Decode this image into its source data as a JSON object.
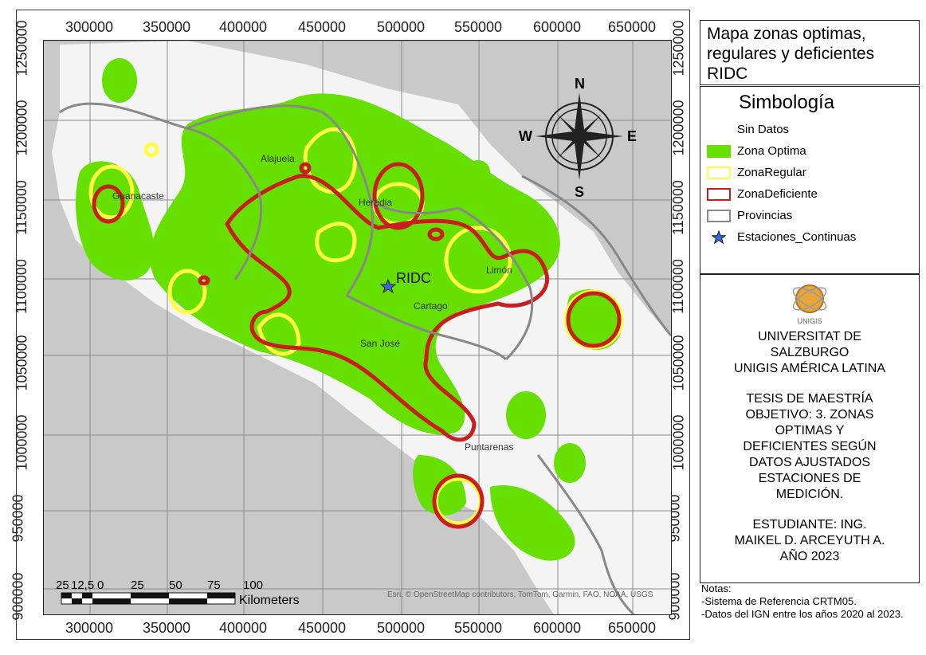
{
  "map": {
    "x_ticks": [
      "300000",
      "350000",
      "400000",
      "450000",
      "500000",
      "550000",
      "600000",
      "650000"
    ],
    "y_ticks": [
      "1250000",
      "1200000",
      "1150000",
      "1100000",
      "1050000",
      "1000000",
      "950000",
      "900000"
    ],
    "provinces": [
      "Guanacaste",
      "Alajuela",
      "Heredia",
      "Limón",
      "Cartago",
      "San José",
      "Puntarenas"
    ],
    "station_label": "RIDC",
    "attribution": "Esri, © OpenStreetMap contributors, TomTom, Garmin, FAO, NOAA, USGS",
    "scale_labels": [
      "25",
      "12,5",
      "0",
      "25",
      "50",
      "75",
      "100"
    ],
    "scale_unit": "Kilometers",
    "compass": {
      "n": "N",
      "s": "S",
      "e": "E",
      "w": "W"
    },
    "colors": {
      "optimal": "#66e000",
      "regular": "#ffff44",
      "deficient": "#c81e1e",
      "province": "#888888",
      "land": "#f4f4f4",
      "sea": "#c9c9c9"
    }
  },
  "title": "Mapa zonas optimas, regulares y deficientes RIDC",
  "legend": {
    "heading": "Simbología",
    "items": [
      "Sin Datos",
      "Zona Optima",
      "ZonaRegular",
      "ZonaDeficiente",
      "Provincias",
      "Estaciones_Continuas"
    ]
  },
  "info": {
    "logo_text": "UNIGIS",
    "university_line1": "UNIVERSITAT DE",
    "university_line2": "SALZBURGO",
    "university_line3": "UNIGIS AMÉRICA LATINA",
    "thesis_lines": [
      "TESIS DE MAESTRÍA",
      "OBJETIVO: 3. ZONAS",
      "OPTIMAS Y",
      "DEFICIENTES SEGÚN",
      "DATOS AJUSTADOS",
      "ESTACIONES DE",
      "MEDICIÓN."
    ],
    "student_lines": [
      "ESTUDIANTE: ING.",
      "MAIKEL D. ARCEYUTH A.",
      "AÑO 2023"
    ]
  },
  "notes": {
    "heading": "Notas:",
    "line1": "-Sistema de Referencia CRTM05.",
    "line2": "-Datos del IGN entre los años 2020 al 2023."
  }
}
